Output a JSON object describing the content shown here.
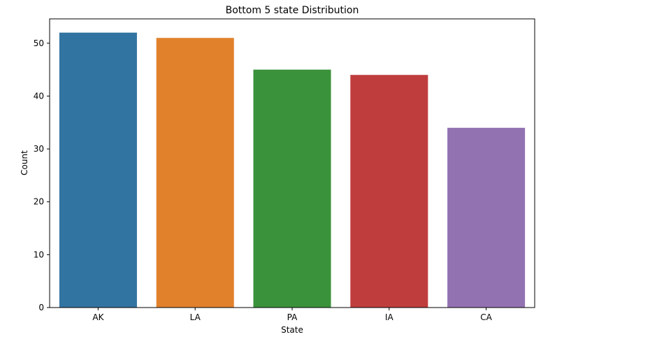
{
  "chart_data": {
    "type": "bar",
    "title": "Bottom 5 state Distribution",
    "xlabel": "State",
    "ylabel": "Count",
    "categories": [
      "AK",
      "LA",
      "PA",
      "IA",
      "CA"
    ],
    "values": [
      52,
      51,
      45,
      44,
      34
    ],
    "colors": [
      "#3274a1",
      "#e1812c",
      "#3a923a",
      "#c03d3e",
      "#9372b2"
    ],
    "ylim": [
      0,
      54.6
    ],
    "yticks": [
      0,
      10,
      20,
      30,
      40,
      50
    ],
    "grid": false,
    "legend": "none"
  }
}
